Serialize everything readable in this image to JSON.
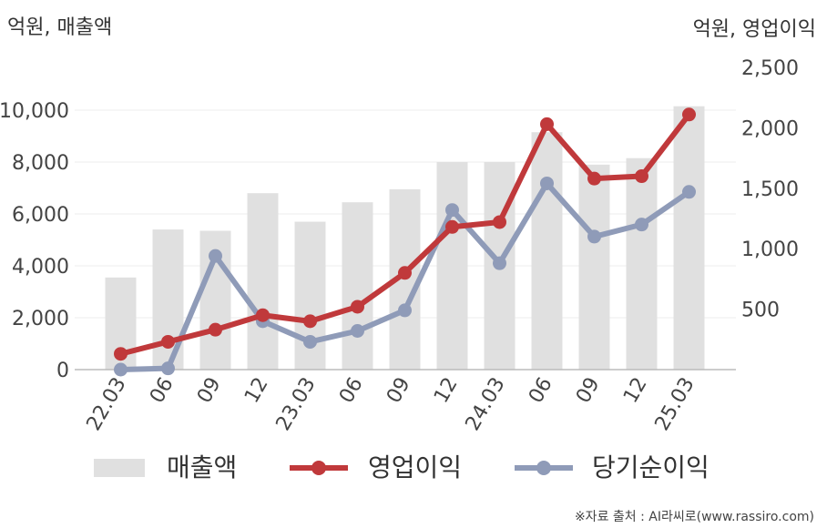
{
  "chart_data": {
    "type": "bar+line",
    "categories": [
      "22.03",
      "06",
      "09",
      "12",
      "23.03",
      "06",
      "09",
      "12",
      "24.03",
      "06",
      "09",
      "12",
      "25.03"
    ],
    "left_axis": {
      "label": "억원, 매출액",
      "ticks": [
        "0",
        "2,000",
        "4,000",
        "6,000",
        "8,000",
        "10,000"
      ],
      "range": [
        0,
        10000
      ]
    },
    "right_axis": {
      "label": "억원, 영업이익",
      "ticks": [
        "500",
        "1,000",
        "1,500",
        "2,000",
        "2,500"
      ],
      "range": [
        0,
        2500
      ]
    },
    "series": [
      {
        "name": "매출액",
        "type": "bar",
        "axis": "left",
        "color": "#e0e0e0",
        "values": [
          3550,
          5400,
          5350,
          6800,
          5700,
          6450,
          6950,
          8000,
          8000,
          9150,
          7900,
          8150,
          10150
        ]
      },
      {
        "name": "영업이익",
        "type": "line",
        "axis": "right",
        "color": "#c0393b",
        "values": [
          130,
          230,
          330,
          450,
          400,
          520,
          800,
          1180,
          1220,
          2030,
          1580,
          1600,
          2110
        ]
      },
      {
        "name": "당기순이익",
        "type": "line",
        "axis": "right",
        "color": "#8f9bb8",
        "values": [
          0,
          10,
          940,
          400,
          230,
          320,
          490,
          1320,
          880,
          1540,
          1100,
          1200,
          1470
        ]
      }
    ],
    "grid": true,
    "legend": "bottom"
  },
  "source": "※자료 출처 : AI라씨로(www.rassiro.com)"
}
